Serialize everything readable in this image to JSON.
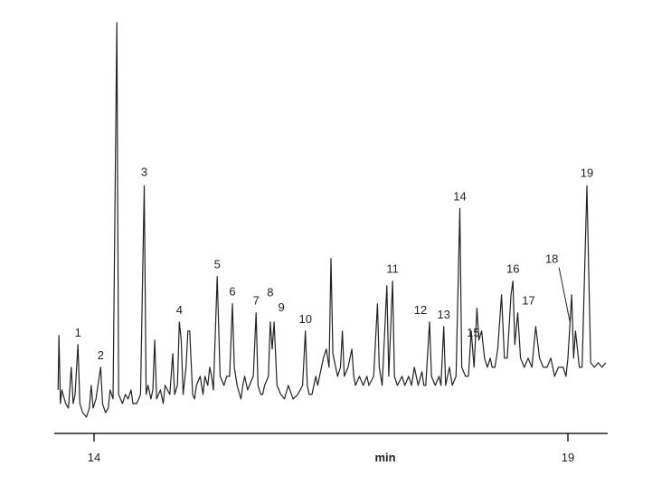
{
  "chart_data": {
    "type": "line",
    "title": "",
    "xlabel": "min",
    "ylabel": "",
    "xlim": [
      13.6,
      19.42
    ],
    "ylim": [
      0,
      440
    ],
    "x_ticks": [
      14,
      19
    ],
    "grid": false,
    "legend": "none",
    "colors": {
      "line": "#222222",
      "axis": "#222222"
    },
    "series": [
      {
        "points": [
          [
            13.62,
            35
          ],
          [
            13.63,
            95
          ],
          [
            13.645,
            20
          ],
          [
            13.66,
            35
          ],
          [
            13.7,
            20
          ],
          [
            13.73,
            15
          ],
          [
            13.76,
            60
          ],
          [
            13.78,
            20
          ],
          [
            13.8,
            30
          ],
          [
            13.83,
            85
          ],
          [
            13.85,
            20
          ],
          [
            13.88,
            10
          ],
          [
            13.92,
            5
          ],
          [
            13.95,
            15
          ],
          [
            13.97,
            40
          ],
          [
            13.99,
            15
          ],
          [
            14.02,
            25
          ],
          [
            14.07,
            60
          ],
          [
            14.09,
            20
          ],
          [
            14.12,
            10
          ],
          [
            14.15,
            15
          ],
          [
            14.17,
            35
          ],
          [
            14.2,
            25
          ],
          [
            14.24,
            440
          ],
          [
            14.26,
            30
          ],
          [
            14.3,
            20
          ],
          [
            14.33,
            30
          ],
          [
            14.36,
            25
          ],
          [
            14.39,
            35
          ],
          [
            14.41,
            20
          ],
          [
            14.45,
            20
          ],
          [
            14.49,
            30
          ],
          [
            14.53,
            260
          ],
          [
            14.55,
            30
          ],
          [
            14.57,
            40
          ],
          [
            14.6,
            25
          ],
          [
            14.62,
            35
          ],
          [
            14.64,
            90
          ],
          [
            14.66,
            25
          ],
          [
            14.7,
            35
          ],
          [
            14.73,
            20
          ],
          [
            14.75,
            40
          ],
          [
            14.8,
            30
          ],
          [
            14.83,
            75
          ],
          [
            14.85,
            30
          ],
          [
            14.88,
            40
          ],
          [
            14.9,
            110
          ],
          [
            14.92,
            90
          ],
          [
            14.94,
            30
          ],
          [
            14.97,
            60
          ],
          [
            14.99,
            100
          ],
          [
            15.01,
            100
          ],
          [
            15.04,
            30
          ],
          [
            15.06,
            25
          ],
          [
            15.08,
            40
          ],
          [
            15.12,
            50
          ],
          [
            15.15,
            30
          ],
          [
            15.17,
            50
          ],
          [
            15.2,
            40
          ],
          [
            15.22,
            60
          ],
          [
            15.24,
            50
          ],
          [
            15.26,
            35
          ],
          [
            15.3,
            160
          ],
          [
            15.33,
            50
          ],
          [
            15.37,
            40
          ],
          [
            15.4,
            50
          ],
          [
            15.43,
            50
          ],
          [
            15.46,
            130
          ],
          [
            15.48,
            60
          ],
          [
            15.51,
            40
          ],
          [
            15.55,
            25
          ],
          [
            15.57,
            40
          ],
          [
            15.59,
            50
          ],
          [
            15.62,
            35
          ],
          [
            15.64,
            40
          ],
          [
            15.68,
            50
          ],
          [
            15.71,
            120
          ],
          [
            15.73,
            40
          ],
          [
            15.76,
            30
          ],
          [
            15.78,
            30
          ],
          [
            15.8,
            40
          ],
          [
            15.84,
            50
          ],
          [
            15.86,
            110
          ],
          [
            15.88,
            80
          ],
          [
            15.9,
            110
          ],
          [
            15.93,
            40
          ],
          [
            15.97,
            30
          ],
          [
            16.01,
            25
          ],
          [
            16.05,
            40
          ],
          [
            16.1,
            25
          ],
          [
            16.15,
            30
          ],
          [
            16.2,
            40
          ],
          [
            16.23,
            100
          ],
          [
            16.25,
            40
          ],
          [
            16.27,
            30
          ],
          [
            16.3,
            30
          ],
          [
            16.34,
            50
          ],
          [
            16.36,
            40
          ],
          [
            16.42,
            70
          ],
          [
            16.45,
            80
          ],
          [
            16.48,
            60
          ],
          [
            16.5,
            180
          ],
          [
            16.52,
            75
          ],
          [
            16.55,
            60
          ],
          [
            16.57,
            50
          ],
          [
            16.6,
            60
          ],
          [
            16.62,
            100
          ],
          [
            16.64,
            50
          ],
          [
            16.68,
            60
          ],
          [
            16.72,
            80
          ],
          [
            16.74,
            50
          ],
          [
            16.76,
            40
          ],
          [
            16.8,
            50
          ],
          [
            16.84,
            40
          ],
          [
            16.88,
            50
          ],
          [
            16.9,
            40
          ],
          [
            16.95,
            50
          ],
          [
            16.99,
            130
          ],
          [
            17.01,
            60
          ],
          [
            17.04,
            40
          ],
          [
            17.09,
            150
          ],
          [
            17.11,
            50
          ],
          [
            17.15,
            155
          ],
          [
            17.17,
            50
          ],
          [
            17.2,
            40
          ],
          [
            17.25,
            50
          ],
          [
            17.28,
            40
          ],
          [
            17.32,
            50
          ],
          [
            17.35,
            40
          ],
          [
            17.38,
            60
          ],
          [
            17.42,
            40
          ],
          [
            17.46,
            55
          ],
          [
            17.48,
            40
          ],
          [
            17.5,
            40
          ],
          [
            17.54,
            110
          ],
          [
            17.56,
            50
          ],
          [
            17.6,
            40
          ],
          [
            17.64,
            50
          ],
          [
            17.66,
            40
          ],
          [
            17.69,
            105
          ],
          [
            17.71,
            40
          ],
          [
            17.75,
            60
          ],
          [
            17.78,
            40
          ],
          [
            17.82,
            50
          ],
          [
            17.86,
            235
          ],
          [
            17.88,
            60
          ],
          [
            17.92,
            50
          ],
          [
            17.95,
            50
          ],
          [
            17.98,
            100
          ],
          [
            18.01,
            60
          ],
          [
            18.04,
            125
          ],
          [
            18.06,
            90
          ],
          [
            18.09,
            100
          ],
          [
            18.12,
            70
          ],
          [
            18.15,
            60
          ],
          [
            18.18,
            70
          ],
          [
            18.2,
            60
          ],
          [
            18.23,
            60
          ],
          [
            18.26,
            80
          ],
          [
            18.3,
            140
          ],
          [
            18.33,
            70
          ],
          [
            18.36,
            70
          ],
          [
            18.4,
            140
          ],
          [
            18.42,
            155
          ],
          [
            18.44,
            85
          ],
          [
            18.47,
            120
          ],
          [
            18.5,
            70
          ],
          [
            18.54,
            60
          ],
          [
            18.58,
            70
          ],
          [
            18.62,
            60
          ],
          [
            18.66,
            105
          ],
          [
            18.7,
            70
          ],
          [
            18.74,
            60
          ],
          [
            18.78,
            60
          ],
          [
            18.82,
            70
          ],
          [
            18.86,
            50
          ],
          [
            18.9,
            60
          ],
          [
            18.95,
            60
          ],
          [
            18.98,
            50
          ],
          [
            19.0,
            70
          ],
          [
            19.04,
            140
          ],
          [
            19.06,
            70
          ],
          [
            19.08,
            100
          ],
          [
            19.12,
            60
          ],
          [
            19.15,
            60
          ],
          [
            19.2,
            260
          ],
          [
            19.24,
            65
          ],
          [
            19.28,
            60
          ],
          [
            19.32,
            65
          ],
          [
            19.36,
            60
          ],
          [
            19.4,
            65
          ]
        ]
      }
    ],
    "annotations": [
      {
        "text": "1",
        "x": 13.83,
        "y": 85
      },
      {
        "text": "2",
        "x": 14.07,
        "y": 60
      },
      {
        "text": "3",
        "x": 14.53,
        "y": 260
      },
      {
        "text": "4",
        "x": 14.9,
        "y": 110
      },
      {
        "text": "5",
        "x": 15.3,
        "y": 160
      },
      {
        "text": "6",
        "x": 15.46,
        "y": 130
      },
      {
        "text": "7",
        "x": 15.71,
        "y": 120
      },
      {
        "text": "8",
        "x": 15.86,
        "y": 130
      },
      {
        "text": "9",
        "x": 15.9,
        "y": 110
      },
      {
        "text": "10",
        "x": 16.23,
        "y": 100
      },
      {
        "text": "11",
        "x": 17.15,
        "y": 155
      },
      {
        "text": "12",
        "x": 17.54,
        "y": 110
      },
      {
        "text": "13",
        "x": 17.69,
        "y": 105
      },
      {
        "text": "14",
        "x": 17.86,
        "y": 235
      },
      {
        "text": "15",
        "x": 18.04,
        "y": 85
      },
      {
        "text": "16",
        "x": 18.42,
        "y": 155
      },
      {
        "text": "17",
        "x": 18.47,
        "y": 120
      },
      {
        "text": "18",
        "x": 19.04,
        "y": 140
      },
      {
        "text": "19",
        "x": 19.2,
        "y": 260
      }
    ]
  }
}
